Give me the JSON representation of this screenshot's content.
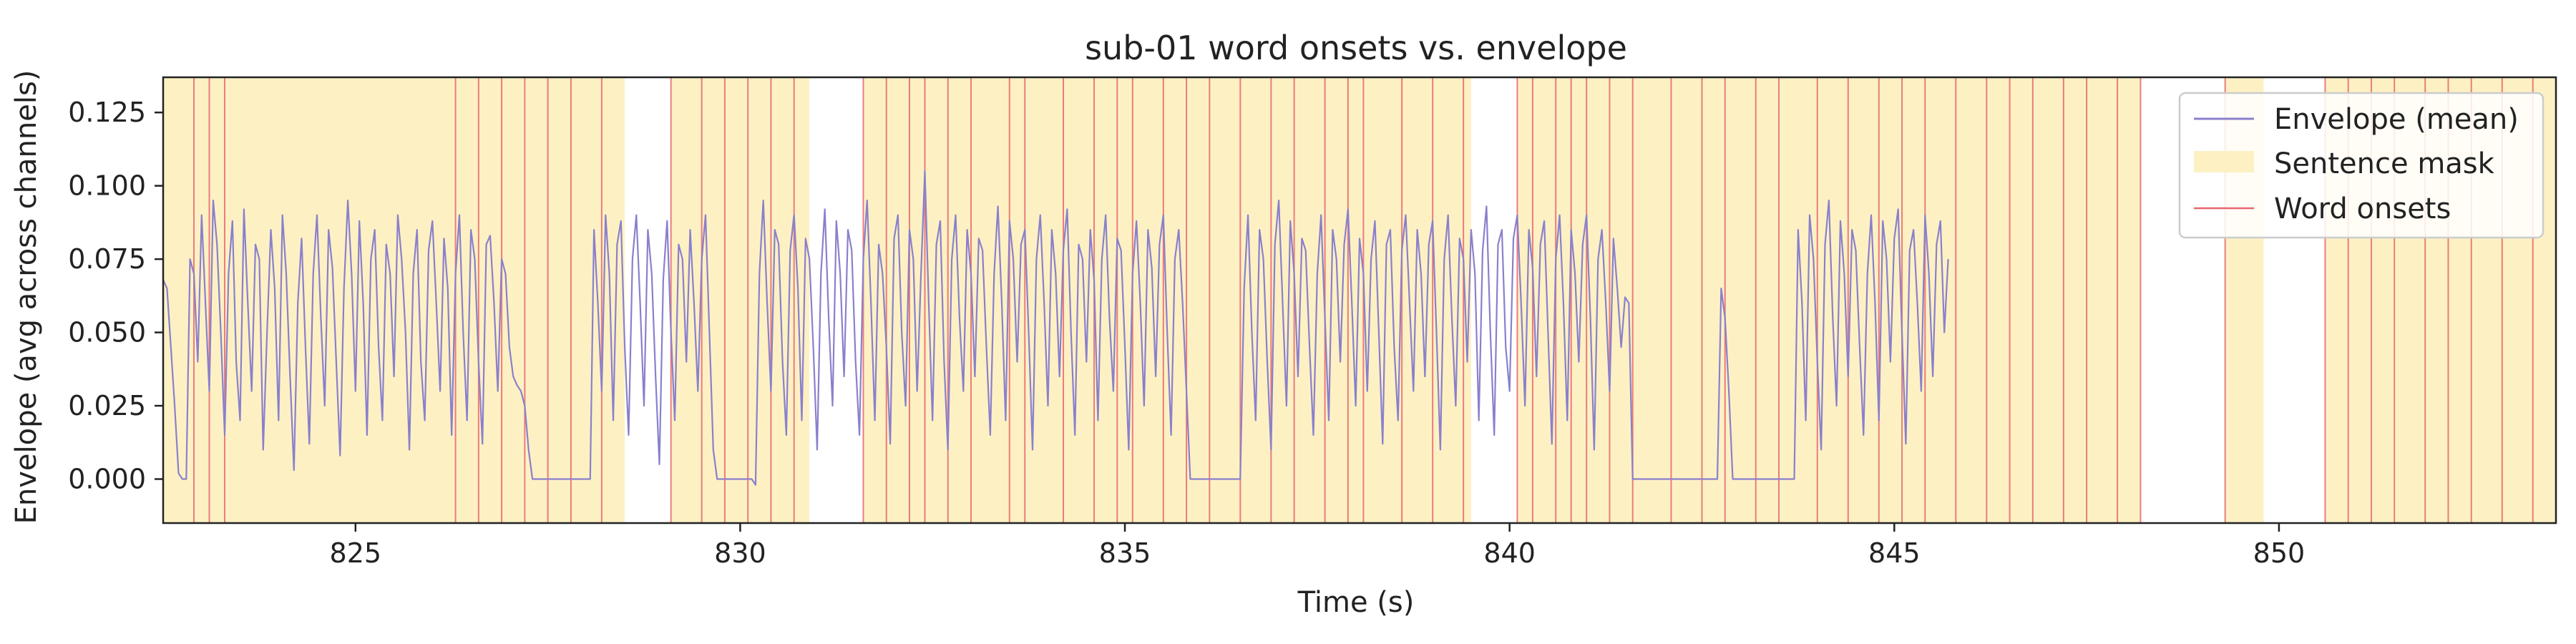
{
  "chart_data": {
    "type": "line",
    "title": "sub-01 word onsets vs. envelope",
    "xlabel": "Time (s)",
    "ylabel": "Envelope (avg across channels)",
    "xlim": [
      822.5,
      853.6
    ],
    "ylim": [
      -0.015,
      0.137
    ],
    "xticks": [
      825,
      830,
      835,
      840,
      845,
      850
    ],
    "xtick_labels": [
      "825",
      "830",
      "835",
      "840",
      "845",
      "850"
    ],
    "yticks": [
      0.0,
      0.025,
      0.05,
      0.075,
      0.1,
      0.125
    ],
    "ytick_labels": [
      "0.000",
      "0.025",
      "0.050",
      "0.075",
      "0.100",
      "0.125"
    ],
    "grid": false,
    "legend_position": "top-right",
    "legend": [
      "Envelope (mean)",
      "Sentence mask",
      "Word onsets"
    ],
    "colors": {
      "envelope": "#8a80cc",
      "mask": "#fdf1c4",
      "onsets": "#e8676e",
      "legend_border": "#cccccc"
    },
    "sentence_mask": [
      [
        822.5,
        828.5
      ],
      [
        829.1,
        830.9
      ],
      [
        831.6,
        839.5
      ],
      [
        840.1,
        848.2
      ],
      [
        849.3,
        849.8
      ],
      [
        850.6,
        853.6
      ]
    ],
    "word_onsets": [
      822.9,
      823.1,
      823.3,
      826.3,
      826.6,
      826.9,
      827.2,
      827.5,
      827.8,
      828.2,
      829.1,
      829.5,
      829.8,
      830.1,
      830.4,
      830.7,
      831.6,
      831.9,
      832.2,
      832.4,
      832.7,
      833.0,
      833.5,
      833.7,
      834.2,
      834.6,
      834.9,
      835.1,
      835.5,
      835.8,
      836.1,
      836.5,
      836.9,
      837.2,
      837.6,
      837.9,
      838.1,
      838.6,
      839.0,
      839.4,
      840.1,
      840.3,
      840.6,
      840.8,
      841.0,
      841.3,
      841.6,
      842.1,
      842.5,
      842.8,
      843.2,
      843.5,
      844.0,
      844.4,
      844.8,
      845.1,
      845.4,
      845.8,
      846.2,
      846.5,
      846.8,
      847.2,
      847.5,
      847.9,
      848.2,
      849.3,
      850.6,
      850.9,
      851.2,
      851.5,
      851.9,
      852.2,
      852.5,
      852.9,
      853.3
    ],
    "envelope_series": {
      "name": "Envelope (mean)",
      "x_start": 822.5,
      "dt": 0.05,
      "y": [
        0.068,
        0.065,
        0.045,
        0.025,
        0.002,
        0.0,
        0.0,
        0.075,
        0.07,
        0.04,
        0.09,
        0.06,
        0.03,
        0.095,
        0.08,
        0.05,
        0.015,
        0.07,
        0.088,
        0.04,
        0.02,
        0.092,
        0.06,
        0.03,
        0.08,
        0.075,
        0.01,
        0.05,
        0.085,
        0.065,
        0.02,
        0.09,
        0.07,
        0.035,
        0.003,
        0.06,
        0.082,
        0.045,
        0.012,
        0.07,
        0.09,
        0.055,
        0.025,
        0.085,
        0.072,
        0.04,
        0.008,
        0.065,
        0.095,
        0.07,
        0.03,
        0.088,
        0.06,
        0.015,
        0.075,
        0.085,
        0.045,
        0.02,
        0.08,
        0.07,
        0.035,
        0.09,
        0.075,
        0.05,
        0.01,
        0.07,
        0.085,
        0.04,
        0.02,
        0.078,
        0.088,
        0.06,
        0.03,
        0.082,
        0.065,
        0.015,
        0.07,
        0.09,
        0.05,
        0.02,
        0.085,
        0.075,
        0.04,
        0.012,
        0.08,
        0.083,
        0.06,
        0.03,
        0.075,
        0.07,
        0.045,
        0.035,
        0.032,
        0.03,
        0.025,
        0.01,
        0.0,
        0.0,
        0.0,
        0.0,
        0.0,
        0.0,
        0.0,
        0.0,
        0.0,
        0.0,
        0.0,
        0.0,
        0.0,
        0.0,
        0.0,
        0.0,
        0.085,
        0.06,
        0.03,
        0.09,
        0.07,
        0.02,
        0.08,
        0.088,
        0.045,
        0.015,
        0.075,
        0.09,
        0.06,
        0.025,
        0.085,
        0.07,
        0.035,
        0.005,
        0.068,
        0.088,
        0.05,
        0.02,
        0.08,
        0.075,
        0.04,
        0.085,
        0.06,
        0.03,
        0.075,
        0.09,
        0.05,
        0.01,
        0.0,
        0.0,
        0.0,
        0.0,
        0.0,
        0.0,
        0.0,
        0.0,
        0.0,
        0.0,
        -0.002,
        0.07,
        0.095,
        0.06,
        0.03,
        0.085,
        0.08,
        0.04,
        0.015,
        0.078,
        0.09,
        0.065,
        0.02,
        0.082,
        0.075,
        0.045,
        0.01,
        0.07,
        0.092,
        0.055,
        0.025,
        0.088,
        0.07,
        0.035,
        0.085,
        0.078,
        0.04,
        0.015,
        0.075,
        0.095,
        0.06,
        0.02,
        0.08,
        0.07,
        0.045,
        0.012,
        0.082,
        0.09,
        0.05,
        0.025,
        0.085,
        0.075,
        0.03,
        0.07,
        0.105,
        0.06,
        0.02,
        0.08,
        0.088,
        0.04,
        0.01,
        0.075,
        0.09,
        0.055,
        0.03,
        0.085,
        0.07,
        0.035,
        0.082,
        0.078,
        0.045,
        0.015,
        0.07,
        0.093,
        0.06,
        0.02,
        0.088,
        0.075,
        0.04,
        0.08,
        0.085,
        0.05,
        0.01,
        0.075,
        0.09,
        0.06,
        0.025,
        0.085,
        0.07,
        0.035,
        0.078,
        0.092,
        0.05,
        0.015,
        0.08,
        0.075,
        0.04,
        0.085,
        0.068,
        0.02,
        0.075,
        0.09,
        0.055,
        0.03,
        0.082,
        0.078,
        0.045,
        0.01,
        0.07,
        0.088,
        0.06,
        0.025,
        0.085,
        0.072,
        0.035,
        0.08,
        0.09,
        0.05,
        0.015,
        0.075,
        0.085,
        0.06,
        0.03,
        0.0,
        0.0,
        0.0,
        0.0,
        0.0,
        0.0,
        0.0,
        0.0,
        0.0,
        0.0,
        0.0,
        0.0,
        0.0,
        0.0,
        0.065,
        0.09,
        0.05,
        0.02,
        0.085,
        0.075,
        0.04,
        0.01,
        0.08,
        0.095,
        0.06,
        0.025,
        0.088,
        0.07,
        0.035,
        0.082,
        0.078,
        0.045,
        0.015,
        0.07,
        0.09,
        0.055,
        0.02,
        0.085,
        0.075,
        0.04,
        0.08,
        0.092,
        0.06,
        0.025,
        0.082,
        0.07,
        0.03,
        0.075,
        0.088,
        0.05,
        0.012,
        0.08,
        0.085,
        0.045,
        0.02,
        0.078,
        0.09,
        0.06,
        0.03,
        0.085,
        0.07,
        0.035,
        0.08,
        0.088,
        0.05,
        0.01,
        0.075,
        0.09,
        0.055,
        0.025,
        0.082,
        0.075,
        0.04,
        0.085,
        0.07,
        0.02,
        0.078,
        0.093,
        0.05,
        0.015,
        0.08,
        0.085,
        0.045,
        0.03,
        0.082,
        0.09,
        0.06,
        0.025,
        0.085,
        0.072,
        0.035,
        0.08,
        0.088,
        0.05,
        0.012,
        0.075,
        0.09,
        0.06,
        0.02,
        0.085,
        0.07,
        0.04,
        0.08,
        0.09,
        0.055,
        0.01,
        0.075,
        0.085,
        0.06,
        0.03,
        0.082,
        0.065,
        0.045,
        0.062,
        0.06,
        0.0,
        0.0,
        0.0,
        0.0,
        0.0,
        0.0,
        0.0,
        0.0,
        0.0,
        0.0,
        0.0,
        0.0,
        0.0,
        0.0,
        0.0,
        0.0,
        0.0,
        0.0,
        0.0,
        0.0,
        0.0,
        0.0,
        0.0,
        0.065,
        0.055,
        0.03,
        0.0,
        0.0,
        0.0,
        0.0,
        0.0,
        0.0,
        0.0,
        0.0,
        0.0,
        0.0,
        0.0,
        0.0,
        0.0,
        0.0,
        0.0,
        0.0,
        0.0,
        0.085,
        0.06,
        0.02,
        0.09,
        0.075,
        0.04,
        0.01,
        0.08,
        0.095,
        0.055,
        0.025,
        0.088,
        0.07,
        0.035,
        0.085,
        0.078,
        0.045,
        0.015,
        0.07,
        0.09,
        0.06,
        0.02,
        0.088,
        0.075,
        0.04,
        0.082,
        0.092,
        0.05,
        0.012,
        0.078,
        0.085,
        0.06,
        0.03,
        0.09,
        0.07,
        0.035,
        0.08,
        0.088,
        0.05,
        0.075
      ]
    }
  }
}
